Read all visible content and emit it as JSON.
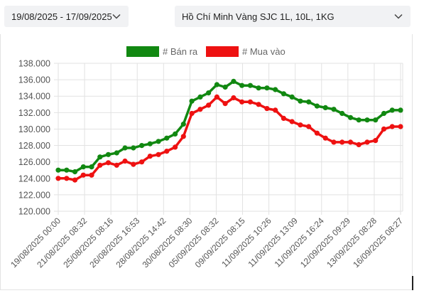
{
  "filters": {
    "date_range": "19/08/2025 - 17/09/2025",
    "gold_type": "Hồ Chí Minh Vàng SJC 1L, 10L, 1KG"
  },
  "icons": {
    "dropdown": "chevron-down-icon"
  },
  "chart_data": {
    "type": "line",
    "y_ticks": [
      "120.000",
      "122.000",
      "124.000",
      "126.000",
      "128.000",
      "130.000",
      "132.000",
      "134.000",
      "136.000",
      "138.000"
    ],
    "ylim": [
      120000,
      138000
    ],
    "grid": true,
    "legend_position": "top",
    "x_tick_labels": [
      "19/08/2025 00:00",
      "21/08/2025 08:32",
      "25/08/2025 08:16",
      "26/08/2025 16:53",
      "28/08/2025 14:42",
      "30/08/2025 08:30",
      "05/09/2025 08:32",
      "09/09/2025 08:15",
      "11/09/2025 10:26",
      "11/09/2025 13:09",
      "11/09/2025 16:24",
      "12/09/2025 09:29",
      "13/09/2025 08:28",
      "16/09/2025 08:27"
    ],
    "series": [
      {
        "name": "# Bán ra",
        "color": "#118811",
        "values": [
          125000,
          125000,
          124800,
          125400,
          125400,
          126600,
          126900,
          127100,
          127700,
          127700,
          128000,
          128200,
          128500,
          128900,
          129400,
          130600,
          133400,
          133900,
          134400,
          135400,
          135100,
          135800,
          135300,
          135300,
          135000,
          135000,
          134800,
          134300,
          133900,
          133400,
          133300,
          132800,
          132600,
          132400,
          131900,
          131400,
          131100,
          131100,
          131100,
          131900,
          132300,
          132300
        ]
      },
      {
        "name": "# Mua vào",
        "color": "#ee1111",
        "values": [
          124000,
          124000,
          123800,
          124400,
          124400,
          125600,
          125900,
          125600,
          126100,
          125700,
          126000,
          126700,
          126900,
          127300,
          127800,
          129100,
          131900,
          132400,
          132900,
          133900,
          133100,
          133800,
          133300,
          133300,
          133000,
          132500,
          132300,
          131300,
          130900,
          130500,
          130300,
          129500,
          128900,
          128400,
          128400,
          128400,
          128100,
          128400,
          128600,
          130000,
          130300,
          130300
        ]
      }
    ]
  }
}
